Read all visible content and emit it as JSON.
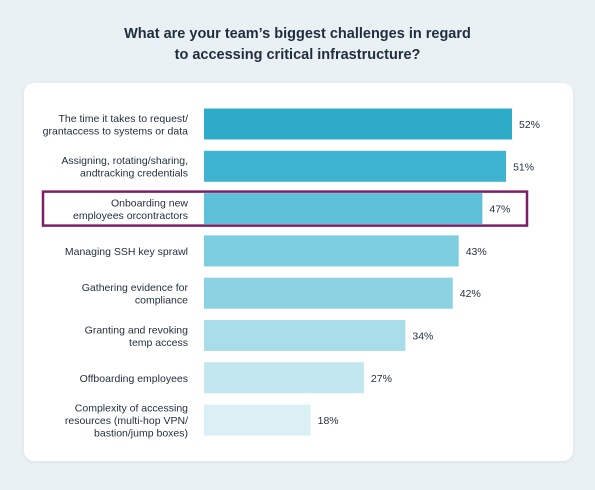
{
  "title_lines": [
    "What are your team’s biggest challenges in regard",
    "to accessing critical infrastructure?"
  ],
  "chart_data": {
    "type": "bar",
    "orientation": "horizontal",
    "title": "What are your team’s biggest challenges in regard to accessing critical infrastructure?",
    "categories": [
      [
        "The time it takes to request/",
        "grantaccess to systems or data"
      ],
      [
        "Assigning, rotating/sharing,",
        "andtracking credentials"
      ],
      [
        "Onboarding new",
        "employees orcontractors"
      ],
      [
        "Managing SSH key sprawl"
      ],
      [
        "Gathering evidence for",
        "compliance"
      ],
      [
        "Granting and revoking",
        "temp access"
      ],
      [
        "Offboarding employees"
      ],
      [
        "Complexity of accessing",
        "resources (multi-hop VPN/",
        "bastion/jump boxes)"
      ]
    ],
    "values": [
      52,
      51,
      47,
      43,
      42,
      34,
      27,
      18
    ],
    "value_labels": [
      "52%",
      "51%",
      "47%",
      "43%",
      "42%",
      "34%",
      "27%",
      "18%"
    ],
    "bar_colors": [
      "#2eabc9",
      "#3fb4d0",
      "#5ebfd8",
      "#7dcde1",
      "#8dd2e3",
      "#a9dde9",
      "#c3e7ef",
      "#daf0f4"
    ],
    "highlight_index": 2,
    "highlight_color": "#7b2068",
    "xlim": [
      0,
      52
    ],
    "grid": false
  }
}
